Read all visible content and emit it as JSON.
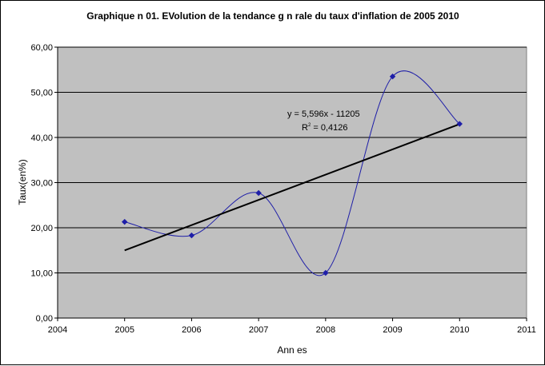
{
  "chart_data": {
    "type": "scatter",
    "title": "Graphique n 01. EVolution de la tendance g  n  rale du taux d'inflation de 2005     2010",
    "xlabel": "Ann  es",
    "ylabel": "Taux(en%)",
    "xlim": [
      2004,
      2011
    ],
    "ylim": [
      0,
      60
    ],
    "x_ticks": [
      2004,
      2005,
      2006,
      2007,
      2008,
      2009,
      2010,
      2011
    ],
    "x_tick_labels": [
      "2004",
      "2005",
      "2006",
      "2007",
      "2008",
      "2009",
      "2010",
      "2011"
    ],
    "y_ticks": [
      0,
      10,
      20,
      30,
      40,
      50,
      60
    ],
    "y_tick_labels": [
      "0,00",
      "10,00",
      "20,00",
      "30,00",
      "40,00",
      "50,00",
      "60,00"
    ],
    "grid": true,
    "series": [
      {
        "x": [
          2005,
          2006,
          2007,
          2008,
          2009,
          2010
        ],
        "y": [
          21.3,
          18.3,
          27.7,
          10.0,
          53.5,
          43.0
        ],
        "color": "#1f1fa8",
        "line": "smooth",
        "marker": "diamond"
      }
    ],
    "trendline": {
      "slope": 5.596,
      "intercept": -11205,
      "x_range": [
        2005,
        2010
      ],
      "color": "#000000",
      "equation_text": "y = 5,596x - 11205",
      "r2_prefix": "R",
      "r2_exponent": "2",
      "r2_value_text": " = 0,4126"
    },
    "plot_background": "#c0c0c0",
    "grid_color": "#000000"
  }
}
